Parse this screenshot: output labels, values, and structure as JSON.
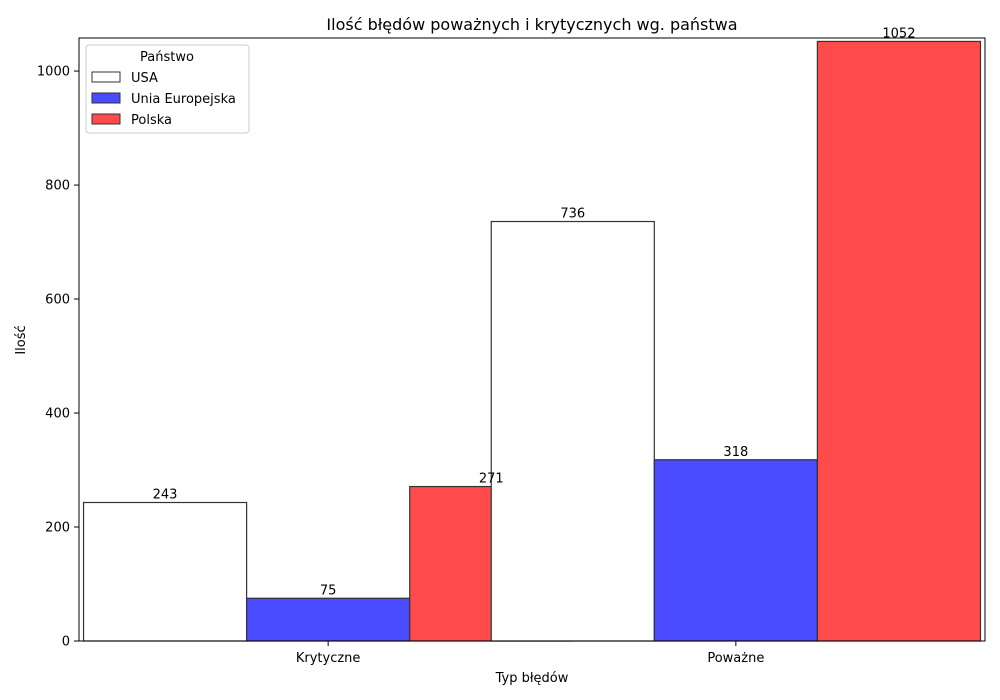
{
  "chart_data": {
    "type": "bar",
    "title": "Ilość błędów poważnych i krytycznych wg. państwa",
    "xlabel": "Typ błędów",
    "ylabel": "Ilość",
    "categories": [
      "Krytyczne",
      "Poważne"
    ],
    "series": [
      {
        "name": "USA",
        "values": [
          243,
          736
        ],
        "color": "#ffffff"
      },
      {
        "name": "Unia Europejska",
        "values": [
          75,
          318
        ],
        "color": "#4b4bff"
      },
      {
        "name": "Polska",
        "values": [
          271,
          1052
        ],
        "color": "#ff4b4b"
      }
    ],
    "ylim": [
      0,
      1058
    ],
    "yticks": [
      0,
      200,
      400,
      600,
      800,
      1000
    ],
    "legend": {
      "title": "Państwo",
      "position": "top-left"
    },
    "grid": false,
    "edge_color": "#333333"
  }
}
